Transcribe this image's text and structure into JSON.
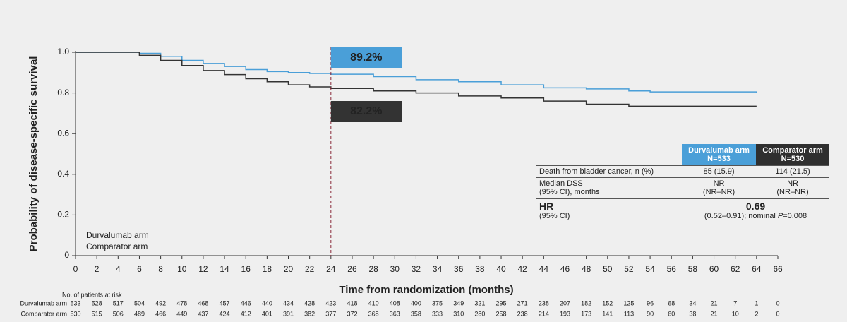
{
  "chart_data": {
    "type": "line",
    "x_label": "Time from randomization (months)",
    "y_label": "Probability of disease-specific survival",
    "x": [
      0,
      6,
      8,
      10,
      12,
      14,
      16,
      18,
      20,
      22,
      24,
      28,
      32,
      36,
      40,
      44,
      48,
      52,
      54,
      64
    ],
    "series": [
      {
        "name": "Durvalumab arm",
        "color": "#4a9fd8",
        "values": [
          1.0,
          0.995,
          0.98,
          0.96,
          0.945,
          0.93,
          0.915,
          0.905,
          0.9,
          0.896,
          0.892,
          0.88,
          0.865,
          0.855,
          0.84,
          0.825,
          0.82,
          0.81,
          0.805,
          0.8
        ]
      },
      {
        "name": "Comparator arm",
        "color": "#333333",
        "values": [
          1.0,
          0.985,
          0.96,
          0.935,
          0.91,
          0.89,
          0.87,
          0.855,
          0.84,
          0.83,
          0.822,
          0.81,
          0.8,
          0.785,
          0.775,
          0.76,
          0.745,
          0.735,
          0.735,
          0.735
        ]
      }
    ],
    "xlim": [
      0,
      66
    ],
    "xticks": [
      0,
      2,
      4,
      6,
      8,
      10,
      12,
      14,
      16,
      18,
      20,
      22,
      24,
      26,
      28,
      30,
      32,
      34,
      36,
      38,
      40,
      42,
      44,
      46,
      48,
      50,
      52,
      54,
      56,
      58,
      60,
      62,
      64,
      66
    ],
    "ylim": [
      0,
      1
    ],
    "yticks": [
      0,
      0.2,
      0.4,
      0.6,
      0.8,
      {
        "value": 1,
        "label": "1.0"
      }
    ],
    "annotations": [
      {
        "text": "89.2%",
        "x": 24,
        "color": "#4a9fd8"
      },
      {
        "text": "82.2%",
        "x": 24,
        "color": "#333333"
      }
    ],
    "risk_table": {
      "title": "No. of patients at risk",
      "rows": [
        [
          533,
          528,
          517,
          504,
          492,
          478,
          468,
          457,
          446,
          440,
          434,
          428,
          423,
          418,
          410,
          408,
          400,
          375,
          349,
          321,
          295,
          271,
          238,
          207,
          182,
          152,
          125,
          96,
          68,
          34,
          21,
          7,
          1,
          0
        ],
        [
          530,
          515,
          506,
          489,
          466,
          449,
          437,
          424,
          412,
          401,
          391,
          382,
          377,
          372,
          368,
          363,
          358,
          333,
          310,
          280,
          258,
          238,
          214,
          193,
          173,
          141,
          113,
          90,
          60,
          38,
          21,
          10,
          2,
          0
        ]
      ]
    }
  },
  "summary_table": {
    "headers": [
      [
        "Durvalumab arm",
        "N=533"
      ],
      [
        "Comparator arm",
        "N=530"
      ]
    ],
    "rows": [
      [
        "Death from bladder cancer, n (%)",
        "85 (15.9)",
        "114 (21.5)"
      ],
      [
        [
          "Median DSS",
          "(95% CI), months"
        ],
        [
          "NR",
          "(NR–NR)"
        ],
        [
          "NR",
          "(NR–NR)"
        ]
      ]
    ],
    "hr": {
      "label": "HR",
      "sublabel": "(95% CI)",
      "value": "0.69",
      "ci": [
        "(0.52–0.91); nominal ",
        "P",
        "=0.008"
      ]
    }
  }
}
